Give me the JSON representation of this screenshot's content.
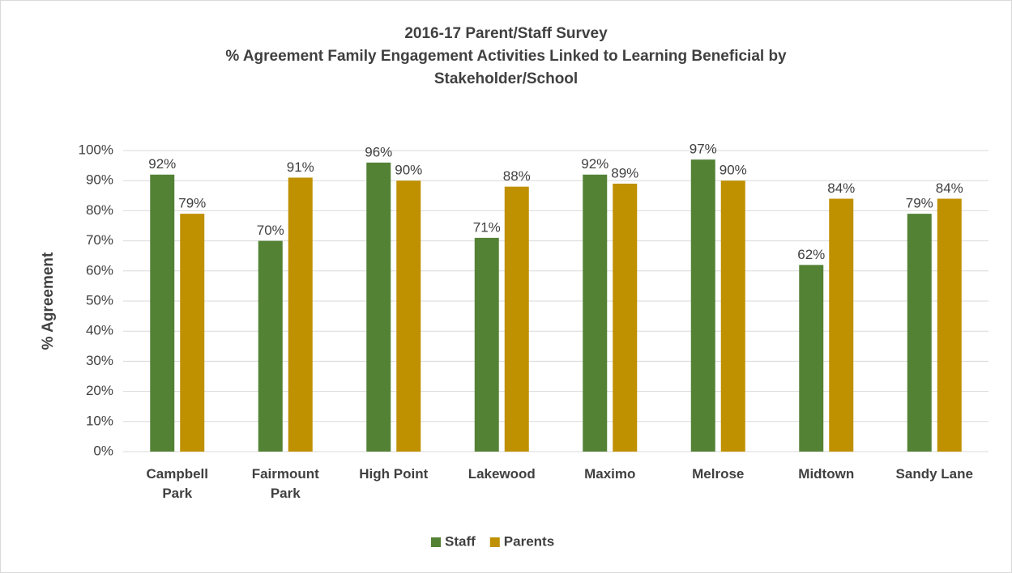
{
  "chart_data": {
    "type": "bar",
    "title": "2016-17 Parent/Staff Survey",
    "subtitle": "% Agreement Family Engagement Activities Linked to Learning Beneficial by Stakeholder/School",
    "y_label": "% Agreement",
    "categories": [
      "Campbell Park",
      "Fairmount Park",
      "High Point",
      "Lakewood",
      "Maximo",
      "Melrose",
      "Midtown",
      "Sandy Lane"
    ],
    "series": [
      {
        "name": "Staff",
        "color": "#548235",
        "values": [
          92,
          70,
          96,
          71,
          92,
          97,
          62,
          79
        ],
        "value_labels": [
          "92%",
          "70%",
          "96%",
          "71%",
          "92%",
          "97%",
          "62%",
          "79%"
        ]
      },
      {
        "name": "Parents",
        "color": "#bf9000",
        "values": [
          79,
          91,
          90,
          88,
          89,
          90,
          84,
          84
        ],
        "value_labels": [
          "79%",
          "91%",
          "90%",
          "88%",
          "89%",
          "90%",
          "84%",
          "84%"
        ]
      }
    ],
    "ylim": [
      0,
      100
    ],
    "yticks": [
      {
        "value": 0,
        "label": "0%"
      },
      {
        "value": 10,
        "label": "10%"
      },
      {
        "value": 20,
        "label": "20%"
      },
      {
        "value": 30,
        "label": "30%"
      },
      {
        "value": 40,
        "label": "40%"
      },
      {
        "value": 50,
        "label": "50%"
      },
      {
        "value": 60,
        "label": "60%"
      },
      {
        "value": 70,
        "label": "70%"
      },
      {
        "value": 80,
        "label": "80%"
      },
      {
        "value": 90,
        "label": "90%"
      },
      {
        "value": 100,
        "label": "100%"
      }
    ],
    "grid": true,
    "legend": "bottom"
  }
}
